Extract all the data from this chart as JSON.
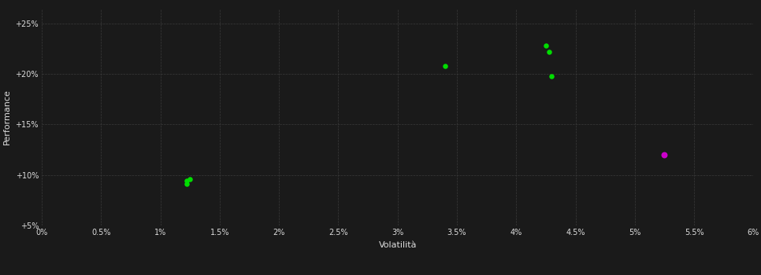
{
  "background_color": "#1a1a1a",
  "grid_color": "#3a3a3a",
  "text_color": "#dddddd",
  "xlabel": "Volatilità",
  "ylabel": "Performance",
  "xlim": [
    0.0,
    0.06
  ],
  "ylim": [
    0.05,
    0.265
  ],
  "xticks": [
    0.0,
    0.005,
    0.01,
    0.015,
    0.02,
    0.025,
    0.03,
    0.035,
    0.04,
    0.045,
    0.05,
    0.055,
    0.06
  ],
  "yticks": [
    0.05,
    0.1,
    0.15,
    0.2,
    0.25
  ],
  "green_points": [
    [
      0.0122,
      0.094
    ],
    [
      0.0125,
      0.096
    ],
    [
      0.0122,
      0.091
    ],
    [
      0.034,
      0.208
    ],
    [
      0.0425,
      0.228
    ],
    [
      0.0428,
      0.222
    ],
    [
      0.043,
      0.198
    ]
  ],
  "magenta_points": [
    [
      0.0525,
      0.12
    ]
  ],
  "green_color": "#00dd00",
  "magenta_color": "#cc00cc",
  "marker_size": 22
}
